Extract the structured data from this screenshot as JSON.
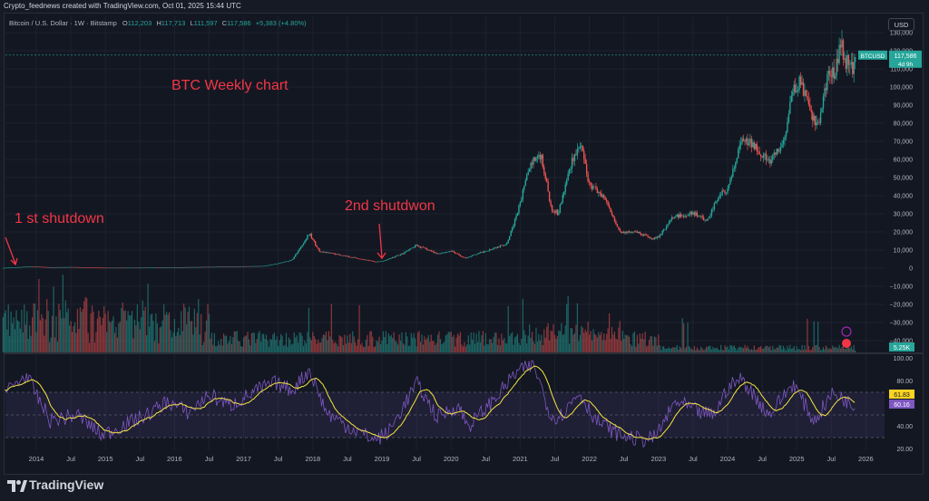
{
  "header": {
    "credit": "Crypto_feednews created with TradingView.com, Oct 01, 2025 15:44 UTC",
    "symbol": "Bitcoin / U.S. Dollar · 1W · Bitstamp",
    "open_label": "O",
    "open": "112,203",
    "high_label": "H",
    "high": "117,713",
    "low_label": "L",
    "low": "111,597",
    "close_label": "C",
    "close": "117,586",
    "change": "+5,383 (+4.80%)",
    "currency_button": "USD"
  },
  "annotations": {
    "title": "BTC  Weekly chart",
    "first_shutdown": "1 st shutdown",
    "second_shutdown": "2nd shutdwon"
  },
  "colors": {
    "up": "#26a69a",
    "down": "#ef5350",
    "annotation": "#f23645",
    "rsi": "#7e57c2",
    "rsi_ma": "#f5e342",
    "rsi_ma_badge": "#f9d423"
  },
  "chart_data": {
    "type": "candlestick",
    "x_ticks": [
      "2014",
      "Jul",
      "2015",
      "Jul",
      "2016",
      "Jul",
      "2017",
      "Jul",
      "2018",
      "Jul",
      "2019",
      "Jul",
      "2020",
      "Jul",
      "2021",
      "Jul",
      "2022",
      "Jul",
      "2023",
      "Jul",
      "2024",
      "Jul",
      "2025",
      "Jul",
      "2026"
    ],
    "price_axis": {
      "ticks": [
        -40000,
        -30000,
        -20000,
        -10000,
        0,
        10000,
        20000,
        30000,
        40000,
        50000,
        60000,
        70000,
        80000,
        90000,
        100000,
        110000,
        120000,
        130000
      ],
      "tick_labels": [
        "−40,000",
        "−30,000",
        "−20,000",
        "−10,000",
        "0",
        "10,000",
        "20,000",
        "30,000",
        "40,000",
        "50,000",
        "60,000",
        "70,000",
        "80,000",
        "90,000",
        "100,000",
        "110,000",
        "120,000",
        "130,000"
      ]
    },
    "price_path": [
      [
        2013.5,
        100
      ],
      [
        2013.92,
        900
      ],
      [
        2014.2,
        500
      ],
      [
        2014.5,
        600
      ],
      [
        2015.0,
        220
      ],
      [
        2015.5,
        260
      ],
      [
        2015.9,
        400
      ],
      [
        2016.5,
        700
      ],
      [
        2016.95,
        950
      ],
      [
        2017.3,
        1200
      ],
      [
        2017.5,
        2600
      ],
      [
        2017.7,
        4500
      ],
      [
        2017.95,
        19000
      ],
      [
        2018.1,
        9000
      ],
      [
        2018.3,
        8000
      ],
      [
        2018.5,
        6500
      ],
      [
        2018.9,
        3500
      ],
      [
        2019.0,
        3700
      ],
      [
        2019.3,
        8000
      ],
      [
        2019.5,
        12500
      ],
      [
        2019.8,
        8000
      ],
      [
        2020.0,
        9500
      ],
      [
        2020.2,
        5500
      ],
      [
        2020.5,
        9500
      ],
      [
        2020.8,
        13500
      ],
      [
        2020.95,
        29000
      ],
      [
        2021.15,
        58000
      ],
      [
        2021.3,
        63000
      ],
      [
        2021.45,
        33000
      ],
      [
        2021.55,
        30000
      ],
      [
        2021.75,
        60000
      ],
      [
        2021.87,
        68000
      ],
      [
        2022.0,
        46000
      ],
      [
        2022.2,
        40000
      ],
      [
        2022.45,
        20000
      ],
      [
        2022.7,
        19500
      ],
      [
        2022.88,
        16500
      ],
      [
        2023.0,
        17000
      ],
      [
        2023.2,
        28000
      ],
      [
        2023.5,
        30500
      ],
      [
        2023.7,
        26000
      ],
      [
        2023.9,
        42000
      ],
      [
        2024.0,
        43000
      ],
      [
        2024.2,
        70000
      ],
      [
        2024.4,
        68000
      ],
      [
        2024.6,
        58000
      ],
      [
        2024.8,
        68000
      ],
      [
        2024.95,
        98000
      ],
      [
        2025.05,
        104000
      ],
      [
        2025.2,
        84000
      ],
      [
        2025.3,
        78000
      ],
      [
        2025.45,
        105000
      ],
      [
        2025.55,
        109000
      ],
      [
        2025.6,
        118000
      ],
      [
        2025.65,
        123000
      ],
      [
        2025.7,
        115000
      ],
      [
        2025.75,
        112000
      ],
      [
        2025.8,
        110000
      ],
      [
        2025.85,
        117586
      ]
    ],
    "last_price_label": {
      "symbol": "BTCUSD",
      "price": "117,586",
      "countdown": "4d 9h"
    },
    "volume_label": "5.25K",
    "rsi": {
      "ticks": [
        100,
        80,
        40,
        20
      ],
      "tick_labels": [
        "100.00",
        "80.00",
        "40.00",
        "20.00"
      ],
      "overbought": 70,
      "oversold": 30,
      "value": "60.16",
      "ma_value": "61.83",
      "path": [
        [
          2013.55,
          70
        ],
        [
          2013.85,
          85
        ],
        [
          2014.2,
          45
        ],
        [
          2014.6,
          50
        ],
        [
          2014.95,
          32
        ],
        [
          2015.3,
          42
        ],
        [
          2015.6,
          50
        ],
        [
          2015.9,
          62
        ],
        [
          2016.2,
          52
        ],
        [
          2016.5,
          68
        ],
        [
          2016.8,
          58
        ],
        [
          2017.2,
          72
        ],
        [
          2017.45,
          78
        ],
        [
          2017.7,
          72
        ],
        [
          2017.95,
          90
        ],
        [
          2018.2,
          52
        ],
        [
          2018.5,
          40
        ],
        [
          2018.9,
          28
        ],
        [
          2019.1,
          35
        ],
        [
          2019.5,
          78
        ],
        [
          2019.8,
          48
        ],
        [
          2020.1,
          58
        ],
        [
          2020.25,
          40
        ],
        [
          2020.6,
          62
        ],
        [
          2020.95,
          88
        ],
        [
          2021.2,
          94
        ],
        [
          2021.45,
          48
        ],
        [
          2021.6,
          50
        ],
        [
          2021.85,
          70
        ],
        [
          2022.1,
          45
        ],
        [
          2022.45,
          32
        ],
        [
          2022.75,
          28
        ],
        [
          2022.95,
          30
        ],
        [
          2023.25,
          62
        ],
        [
          2023.6,
          52
        ],
        [
          2023.8,
          50
        ],
        [
          2024.0,
          74
        ],
        [
          2024.2,
          82
        ],
        [
          2024.6,
          50
        ],
        [
          2024.95,
          78
        ],
        [
          2025.25,
          44
        ],
        [
          2025.5,
          68
        ],
        [
          2025.65,
          66
        ],
        [
          2025.8,
          58
        ],
        [
          2025.85,
          60
        ]
      ]
    }
  },
  "footer": {
    "brand": "TradingView"
  }
}
